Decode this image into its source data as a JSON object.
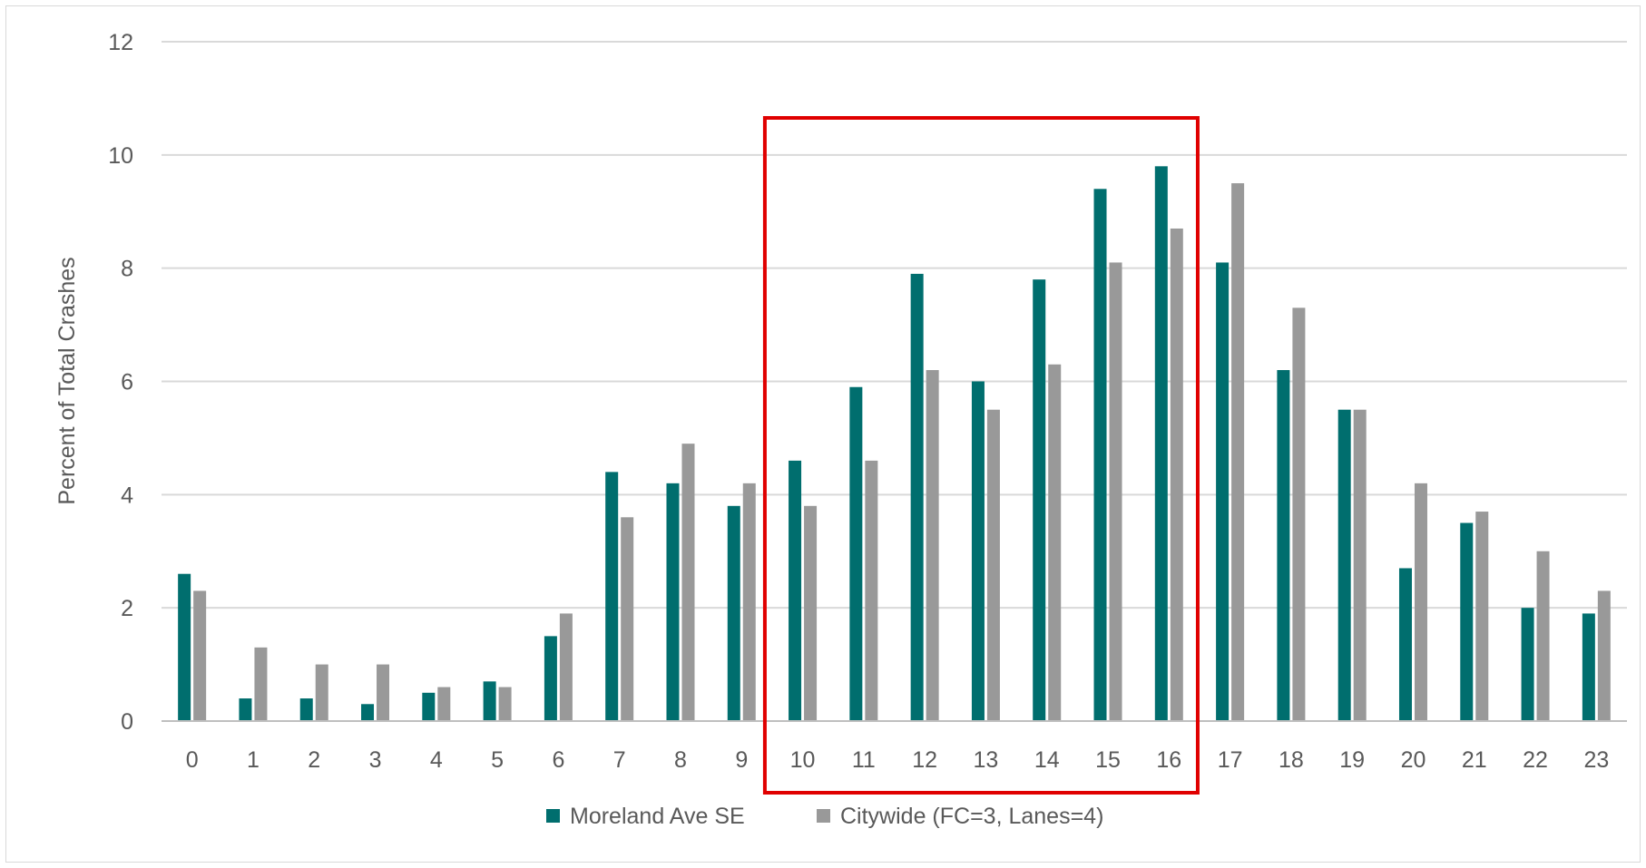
{
  "chart_data": {
    "type": "bar",
    "title": "",
    "xlabel": "",
    "ylabel": "Percent of Total Crashes",
    "ylim": [
      0,
      12
    ],
    "yticks": [
      0,
      2,
      4,
      6,
      8,
      10,
      12
    ],
    "grid": true,
    "legend_position": "bottom",
    "categories": [
      "0",
      "1",
      "2",
      "3",
      "4",
      "5",
      "6",
      "7",
      "8",
      "9",
      "10",
      "11",
      "12",
      "13",
      "14",
      "15",
      "16",
      "17",
      "18",
      "19",
      "20",
      "21",
      "22",
      "23"
    ],
    "series": [
      {
        "name": "Moreland Ave SE",
        "color": "#006e6e",
        "values": [
          2.6,
          0.4,
          0.4,
          0.3,
          0.5,
          0.7,
          1.5,
          4.4,
          4.2,
          3.8,
          4.6,
          5.9,
          7.9,
          6.0,
          7.8,
          9.4,
          9.8,
          8.1,
          6.2,
          5.5,
          2.7,
          3.5,
          2.0,
          1.9
        ]
      },
      {
        "name": "Citywide (FC=3, Lanes=4)",
        "color": "#999999",
        "values": [
          2.3,
          1.3,
          1.0,
          1.0,
          0.6,
          0.6,
          1.9,
          3.6,
          4.9,
          4.2,
          3.8,
          4.6,
          6.2,
          5.5,
          6.3,
          8.1,
          8.7,
          9.5,
          7.3,
          5.5,
          4.2,
          3.7,
          3.0,
          2.3
        ]
      }
    ],
    "highlight": {
      "from_category": "10",
      "to_category": "16",
      "color": "#e00000"
    }
  }
}
